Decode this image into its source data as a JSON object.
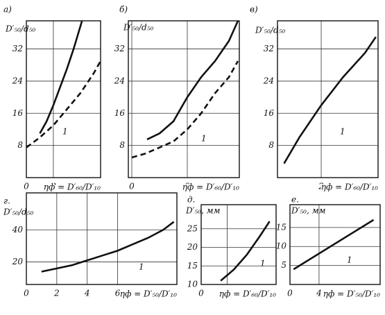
{
  "chart_data": [
    {
      "type": "line",
      "title": "а)",
      "y_label": "D′₅₀/d₅₀",
      "x_label": "ηф = D′₆₀/D′₁₀",
      "annotation": "1",
      "xlim": [
        0,
        22
      ],
      "ylim": [
        0,
        39
      ],
      "xticks": [
        0,
        8
      ],
      "yticks": [
        8,
        16,
        24,
        32
      ],
      "grid": true,
      "series": [
        {
          "color": "#111111",
          "dashed": false,
          "x": [
            4,
            6,
            8,
            10,
            12,
            14,
            16.5
          ],
          "values": [
            11,
            14,
            18,
            22.5,
            27,
            32,
            39
          ]
        },
        {
          "color": "#111111",
          "dashed": true,
          "x": [
            0,
            4,
            8,
            12,
            16,
            20,
            22
          ],
          "values": [
            7.5,
            10,
            13,
            17,
            21,
            26,
            29
          ]
        }
      ]
    },
    {
      "type": "line",
      "title": "б)",
      "y_label": "D′₅₀/d₅₀",
      "x_label": "ηф = D′₆₀/D′₁₀",
      "annotation": "1",
      "xlim": [
        -0.5,
        15.5
      ],
      "ylim": [
        0,
        39
      ],
      "xticks": [
        0,
        8
      ],
      "yticks": [
        8,
        16,
        24,
        32
      ],
      "grid": true,
      "series": [
        {
          "color": "#111111",
          "dashed": false,
          "x": [
            2.2,
            4,
            6,
            8,
            10,
            12,
            14,
            15.3
          ],
          "values": [
            9.5,
            11,
            14,
            20,
            25,
            29,
            34,
            39
          ]
        },
        {
          "color": "#111111",
          "dashed": true,
          "x": [
            0,
            2,
            4,
            6,
            8,
            10,
            12,
            14,
            15.3
          ],
          "values": [
            5,
            6,
            7.5,
            9,
            12,
            16,
            21,
            25,
            29
          ]
        }
      ]
    },
    {
      "type": "line",
      "title": "в)",
      "y_label": "D′₅₀/d₅₀",
      "x_label": "ηф = D′₆₀/D′₁₀",
      "annotation": "1",
      "xlim": [
        0,
        4.6
      ],
      "ylim": [
        0,
        39
      ],
      "xticks": [
        2
      ],
      "yticks": [
        8,
        16,
        24,
        32
      ],
      "grid": true,
      "series": [
        {
          "color": "#111111",
          "dashed": false,
          "x": [
            0.3,
            1,
            2,
            3,
            4,
            4.5
          ],
          "values": [
            3.5,
            10,
            18,
            25,
            31,
            35
          ]
        }
      ]
    },
    {
      "type": "line",
      "title": "г.",
      "y_label": "D′₅₀/d₅₀",
      "x_label": "ηф = D′₅₀/D′₁₀",
      "annotation": "1",
      "xlim": [
        0,
        9.9
      ],
      "ylim": [
        6,
        63
      ],
      "xticks": [
        0,
        2,
        4,
        6
      ],
      "yticks": [
        20,
        40
      ],
      "grid": true,
      "series": [
        {
          "color": "#111111",
          "dashed": false,
          "x": [
            1,
            2,
            3,
            4,
            5,
            6,
            7,
            8,
            9,
            9.7
          ],
          "values": [
            14,
            16,
            18,
            21,
            24,
            27,
            31,
            35,
            40,
            45
          ]
        }
      ]
    },
    {
      "type": "line",
      "title": "д.",
      "y_label": "D′₅₀, мм",
      "x_label": "ηф = D′₆₀/D′₁₀",
      "annotation": "1",
      "xlim": [
        0,
        11.5
      ],
      "ylim": [
        10,
        31.5
      ],
      "xticks": [
        0,
        4
      ],
      "yticks": [
        10,
        15,
        20,
        25
      ],
      "grid": true,
      "series": [
        {
          "color": "#111111",
          "dashed": false,
          "x": [
            3,
            5,
            7,
            9,
            10.5
          ],
          "values": [
            11,
            14,
            18,
            23,
            27
          ]
        }
      ]
    },
    {
      "type": "line",
      "title": "е.",
      "y_label": "D′₅₀, мм",
      "x_label": "ηф = D′₅₀/D′₁₀",
      "annotation": "1",
      "xlim": [
        0,
        12.4
      ],
      "ylim": [
        0,
        21
      ],
      "xticks": [
        0,
        4
      ],
      "yticks": [
        5,
        10,
        15
      ],
      "grid": true,
      "series": [
        {
          "color": "#111111",
          "dashed": false,
          "x": [
            0.5,
            11.5
          ],
          "values": [
            4,
            17
          ]
        }
      ]
    }
  ]
}
